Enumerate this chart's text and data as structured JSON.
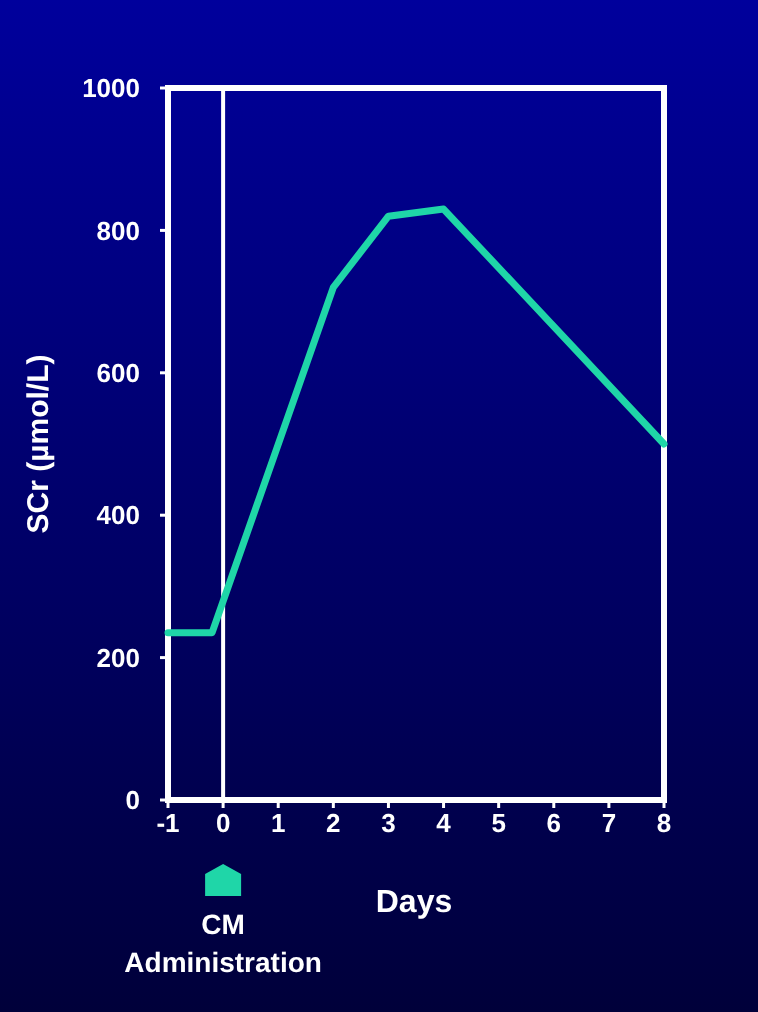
{
  "chart_data": {
    "type": "line",
    "xlabel": "Days",
    "ylabel": "SCr (µmol/L)",
    "x": [
      -1,
      -0.2,
      2,
      3,
      4,
      8
    ],
    "series": [
      {
        "color": "#1fd6a8",
        "values": [
          235,
          235,
          720,
          820,
          830,
          500
        ]
      }
    ],
    "xlim": [
      -1,
      8
    ],
    "xticks": [
      -1,
      0,
      1,
      2,
      3,
      4,
      5,
      6,
      7,
      8
    ],
    "ylim": [
      0,
      1000
    ],
    "yticks": [
      0,
      200,
      400,
      600,
      800,
      1000
    ],
    "ref_lines": [
      {
        "axis": "x",
        "value": 0,
        "label": "CM Administration",
        "color": "#ffffff"
      }
    ],
    "grid": false,
    "marker": "none",
    "line_style": "solid"
  }
}
